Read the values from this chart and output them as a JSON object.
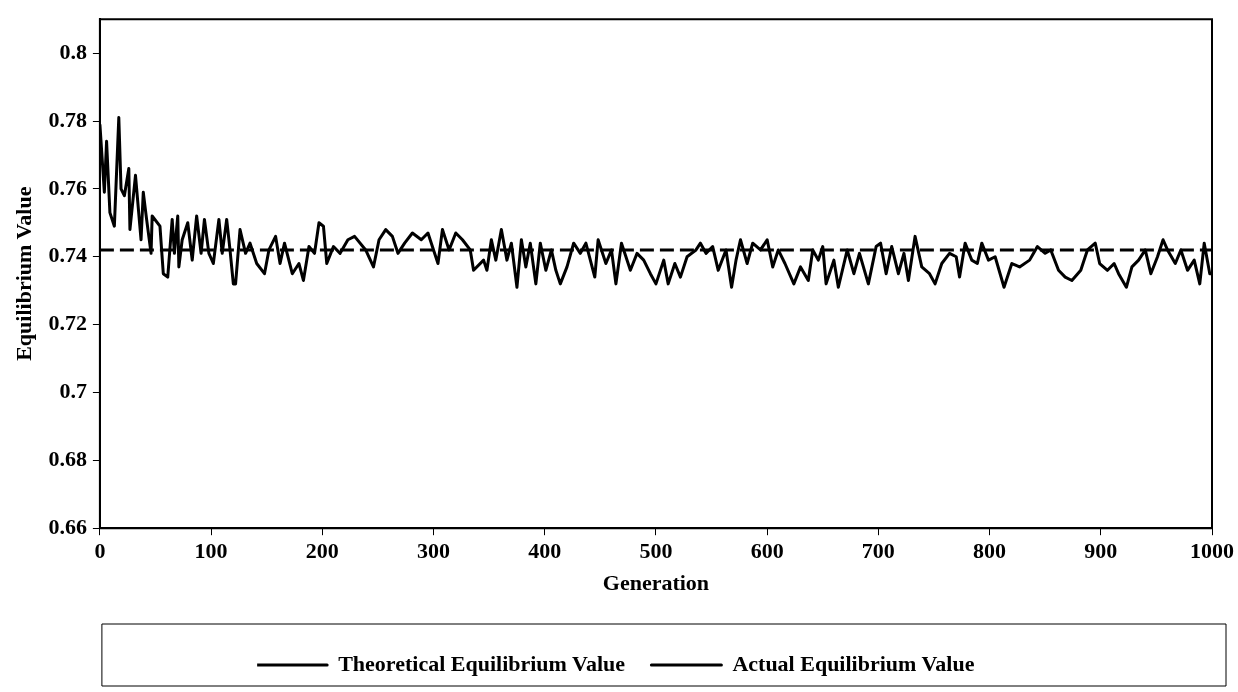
{
  "chart_data": {
    "type": "line",
    "xlabel": "Generation",
    "ylabel": "Equilibrium Value",
    "xlim": [
      0,
      1000
    ],
    "xticks": [
      0,
      100,
      200,
      300,
      400,
      500,
      600,
      700,
      800,
      900,
      1000
    ],
    "ylim": [
      0.66,
      0.81
    ],
    "yticks": [
      0.66,
      0.68,
      0.7,
      0.72,
      0.74,
      0.76,
      0.78,
      0.8
    ],
    "grid": false,
    "legend": "bottom",
    "marker": "none",
    "series": [
      {
        "name": "Theoretical Equilibrium Value",
        "color": "#000000",
        "line_style": "dashed",
        "x": [
          0,
          1000
        ],
        "values": [
          0.742,
          0.742
        ]
      },
      {
        "name": "Actual Equilibrium Value",
        "color": "#000000",
        "line_style": "solid",
        "x": [
          0,
          4,
          6,
          9,
          13,
          17,
          19,
          22,
          26,
          27,
          32,
          37,
          39,
          42,
          46,
          47,
          54,
          57,
          61,
          65,
          67,
          70,
          71,
          74,
          79,
          83,
          87,
          91,
          94,
          98,
          102,
          107,
          110,
          114,
          117,
          120,
          122,
          126,
          131,
          135,
          141,
          148,
          152,
          158,
          162,
          166,
          173,
          179,
          183,
          188,
          193,
          197,
          201,
          204,
          210,
          216,
          223,
          229,
          239,
          246,
          251,
          257,
          263,
          268,
          274,
          281,
          289,
          295,
          300,
          304,
          308,
          314,
          320,
          326,
          333,
          336,
          345,
          348,
          352,
          356,
          361,
          366,
          370,
          375,
          379,
          383,
          387,
          392,
          396,
          401,
          406,
          410,
          414,
          420,
          426,
          432,
          437,
          445,
          448,
          455,
          460,
          464,
          469,
          477,
          483,
          489,
          495,
          500,
          507,
          511,
          517,
          522,
          528,
          536,
          540,
          545,
          551,
          556,
          563,
          568,
          572,
          576,
          582,
          587,
          594,
          600,
          605,
          610,
          616,
          624,
          630,
          637,
          641,
          646,
          650,
          653,
          660,
          664,
          672,
          678,
          683,
          691,
          698,
          702,
          707,
          712,
          718,
          723,
          727,
          733,
          739,
          746,
          751,
          757,
          764,
          770,
          773,
          778,
          784,
          789,
          793,
          799,
          805,
          813,
          820,
          827,
          836,
          843,
          850,
          855,
          862,
          868,
          874,
          882,
          888,
          895,
          899,
          906,
          912,
          916,
          923,
          928,
          934,
          940,
          945,
          951,
          956,
          960,
          967,
          972,
          978,
          984,
          989,
          993,
          998,
          1000
        ],
        "values": [
          0.779,
          0.759,
          0.774,
          0.753,
          0.749,
          0.781,
          0.76,
          0.758,
          0.766,
          0.748,
          0.764,
          0.745,
          0.759,
          0.751,
          0.741,
          0.752,
          0.749,
          0.735,
          0.734,
          0.751,
          0.741,
          0.752,
          0.737,
          0.745,
          0.75,
          0.739,
          0.752,
          0.741,
          0.751,
          0.741,
          0.738,
          0.751,
          0.741,
          0.751,
          0.742,
          0.732,
          0.732,
          0.748,
          0.741,
          0.744,
          0.738,
          0.735,
          0.742,
          0.746,
          0.738,
          0.744,
          0.735,
          0.738,
          0.733,
          0.743,
          0.741,
          0.75,
          0.749,
          0.738,
          0.743,
          0.741,
          0.745,
          0.746,
          0.742,
          0.737,
          0.745,
          0.748,
          0.746,
          0.741,
          0.744,
          0.747,
          0.745,
          0.747,
          0.742,
          0.738,
          0.748,
          0.742,
          0.747,
          0.745,
          0.742,
          0.736,
          0.739,
          0.736,
          0.745,
          0.739,
          0.748,
          0.739,
          0.744,
          0.731,
          0.745,
          0.737,
          0.744,
          0.732,
          0.744,
          0.736,
          0.742,
          0.736,
          0.732,
          0.737,
          0.744,
          0.741,
          0.744,
          0.734,
          0.745,
          0.738,
          0.742,
          0.732,
          0.744,
          0.736,
          0.741,
          0.739,
          0.735,
          0.732,
          0.739,
          0.732,
          0.738,
          0.734,
          0.74,
          0.742,
          0.744,
          0.741,
          0.743,
          0.736,
          0.742,
          0.731,
          0.739,
          0.745,
          0.738,
          0.744,
          0.742,
          0.745,
          0.737,
          0.742,
          0.738,
          0.732,
          0.737,
          0.733,
          0.742,
          0.739,
          0.743,
          0.732,
          0.739,
          0.731,
          0.742,
          0.735,
          0.741,
          0.732,
          0.743,
          0.744,
          0.735,
          0.743,
          0.735,
          0.741,
          0.733,
          0.746,
          0.737,
          0.735,
          0.732,
          0.738,
          0.741,
          0.74,
          0.734,
          0.744,
          0.739,
          0.738,
          0.744,
          0.739,
          0.74,
          0.731,
          0.738,
          0.737,
          0.739,
          0.743,
          0.741,
          0.742,
          0.736,
          0.734,
          0.733,
          0.736,
          0.742,
          0.744,
          0.738,
          0.736,
          0.738,
          0.735,
          0.731,
          0.737,
          0.739,
          0.742,
          0.735,
          0.74,
          0.745,
          0.742,
          0.738,
          0.742,
          0.736,
          0.739,
          0.732,
          0.744,
          0.735,
          0.735
        ]
      }
    ]
  }
}
